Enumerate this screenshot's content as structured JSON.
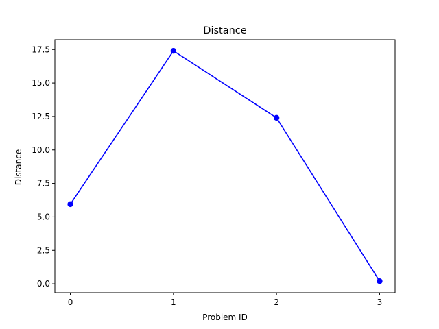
{
  "chart_data": {
    "type": "line",
    "title": "Distance",
    "xlabel": "Problem ID",
    "ylabel": "Distance",
    "x": [
      0,
      1,
      2,
      3
    ],
    "xticks": [
      "0",
      "1",
      "2",
      "3"
    ],
    "yticks": [
      "0.0",
      "2.5",
      "5.0",
      "7.5",
      "10.0",
      "12.5",
      "15.0",
      "17.5"
    ],
    "ylim": [
      -0.66,
      18.23
    ],
    "xlim": [
      -0.15,
      3.15
    ],
    "grid": false,
    "series": [
      {
        "values": [
          5.95,
          17.4,
          12.4,
          0.2
        ],
        "color": "#0000ff",
        "marker": "circle"
      }
    ]
  }
}
